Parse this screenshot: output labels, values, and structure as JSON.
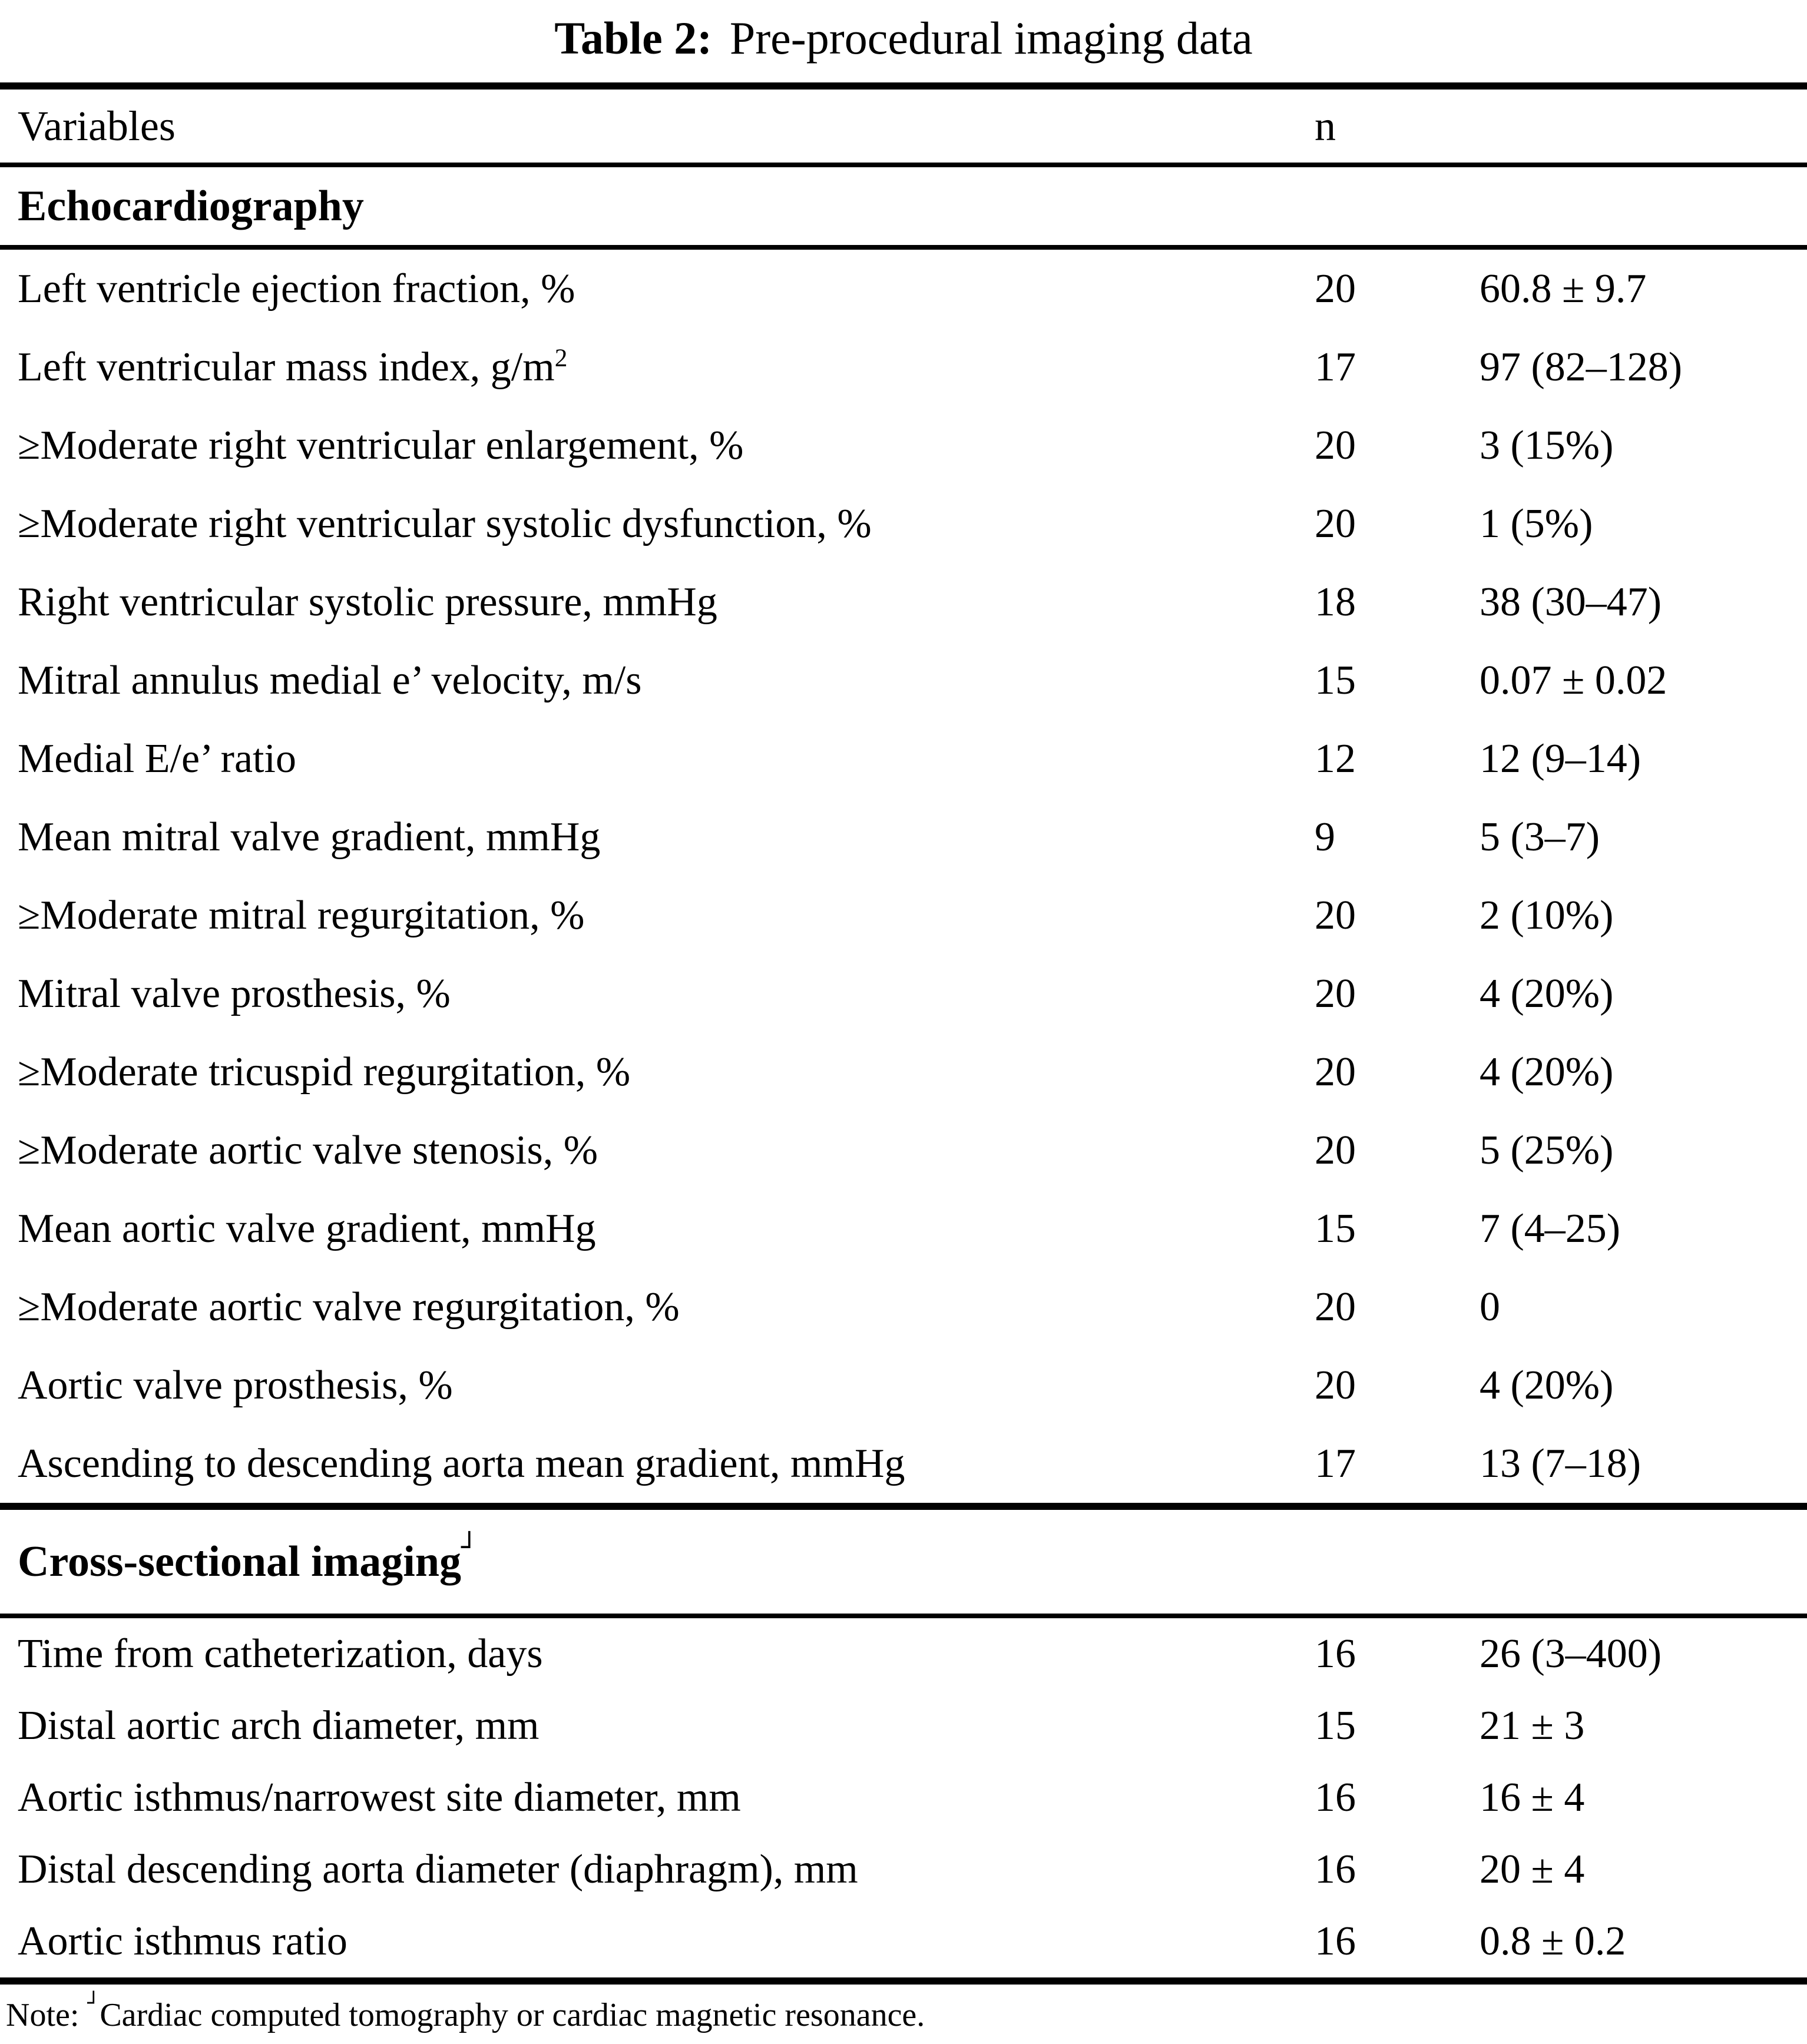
{
  "title": {
    "prefix": "Table 2:",
    "text": "Pre-procedural imaging data"
  },
  "header": {
    "variables": "Variables",
    "n": "n"
  },
  "sections": [
    {
      "name": "Echocardiography",
      "marker": "",
      "rows": [
        {
          "variable": "Left ventricle ejection fraction, %",
          "n": "20",
          "value": "60.8 ± 9.7"
        },
        {
          "variable": "Left ventricular mass index, g/m",
          "sup": "2",
          "n": "17",
          "value": "97 (82–128)"
        },
        {
          "variable": "≥Moderate right ventricular enlargement, %",
          "n": "20",
          "value": "3 (15%)"
        },
        {
          "variable": "≥Moderate right ventricular systolic dysfunction, %",
          "n": "20",
          "value": "1 (5%)"
        },
        {
          "variable": "Right ventricular systolic pressure, mmHg",
          "n": "18",
          "value": "38 (30–47)"
        },
        {
          "variable": "Mitral annulus medial e’ velocity, m/s",
          "n": "15",
          "value": "0.07 ± 0.02"
        },
        {
          "variable": "Medial E/e’ ratio",
          "n": "12",
          "value": "12 (9–14)"
        },
        {
          "variable": "Mean mitral valve gradient, mmHg",
          "n": "9",
          "value": "5 (3–7)"
        },
        {
          "variable": "≥Moderate mitral regurgitation, %",
          "n": "20",
          "value": "2 (10%)"
        },
        {
          "variable": "Mitral valve prosthesis, %",
          "n": "20",
          "value": "4 (20%)"
        },
        {
          "variable": "≥Moderate tricuspid regurgitation, %",
          "n": "20",
          "value": "4 (20%)"
        },
        {
          "variable": "≥Moderate aortic valve stenosis, %",
          "n": "20",
          "value": "5 (25%)"
        },
        {
          "variable": "Mean aortic valve gradient, mmHg",
          "n": "15",
          "value": "7 (4–25)"
        },
        {
          "variable": "≥Moderate aortic valve regurgitation, %",
          "n": "20",
          "value": "0"
        },
        {
          "variable": "Aortic valve prosthesis, %",
          "n": "20",
          "value": "4 (20%)"
        },
        {
          "variable": "Ascending to descending aorta mean gradient, mmHg",
          "n": "17",
          "value": "13 (7–18)"
        }
      ]
    },
    {
      "name": "Cross-sectional imaging",
      "marker": "┘",
      "rows": [
        {
          "variable": "Time from catheterization, days",
          "n": "16",
          "value": "26 (3–400)"
        },
        {
          "variable": "Distal aortic arch diameter, mm",
          "n": "15",
          "value": "21 ± 3"
        },
        {
          "variable": "Aortic isthmus/narrowest site diameter, mm",
          "n": "16",
          "value": "16 ± 4"
        },
        {
          "variable": "Distal descending aorta diameter (diaphragm), mm",
          "n": "16",
          "value": "20 ± 4"
        },
        {
          "variable": "Aortic isthmus ratio",
          "n": "16",
          "value": "0.8 ± 0.2"
        }
      ]
    }
  ],
  "footnote": {
    "label": "Note: ",
    "marker": "┘",
    "text": "Cardiac computed tomography or cardiac magnetic resonance."
  }
}
